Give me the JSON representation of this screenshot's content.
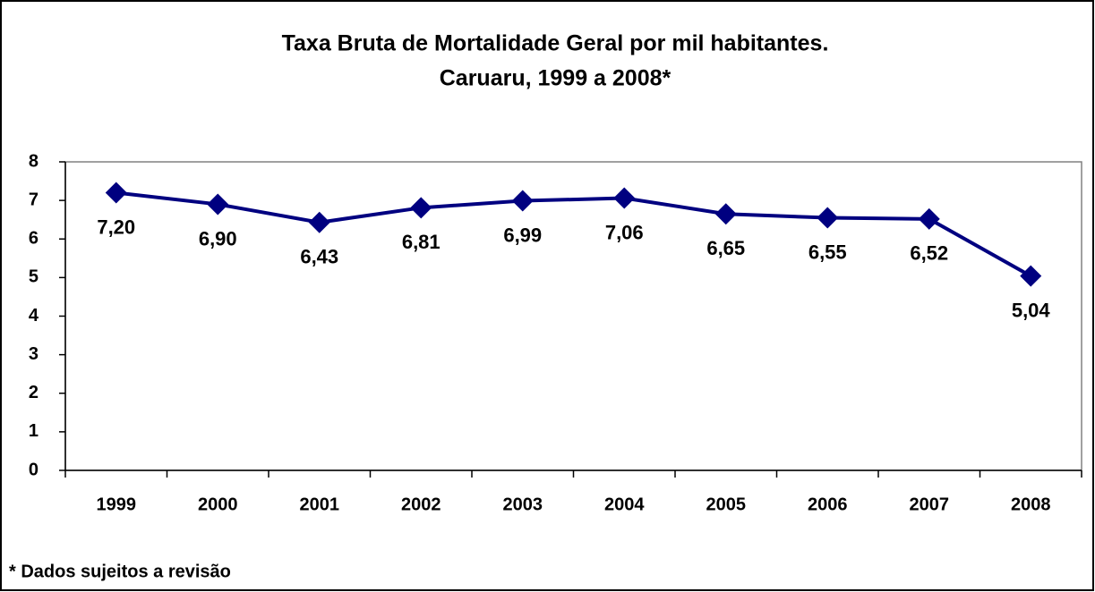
{
  "chart_data": {
    "type": "line",
    "title": "Taxa Bruta de Mortalidade Geral por mil habitantes.",
    "subtitle": "Caruaru, 1999 a 2008*",
    "categories": [
      "1999",
      "2000",
      "2001",
      "2002",
      "2003",
      "2004",
      "2005",
      "2006",
      "2007",
      "2008"
    ],
    "series": [
      {
        "name": "Taxa Bruta de Mortalidade Geral",
        "color": "#000080",
        "values": [
          7.2,
          6.9,
          6.43,
          6.81,
          6.99,
          7.06,
          6.65,
          6.55,
          6.52,
          5.04
        ],
        "value_labels": [
          "7,20",
          "6,90",
          "6,43",
          "6,81",
          "6,99",
          "7,06",
          "6,65",
          "6,55",
          "6,52",
          "5,04"
        ]
      }
    ],
    "ylim": [
      0,
      8
    ],
    "yticks": [
      0,
      1,
      2,
      3,
      4,
      5,
      6,
      7,
      8
    ],
    "grid": false,
    "footnote": "* Dados sujeitos a revisão"
  }
}
